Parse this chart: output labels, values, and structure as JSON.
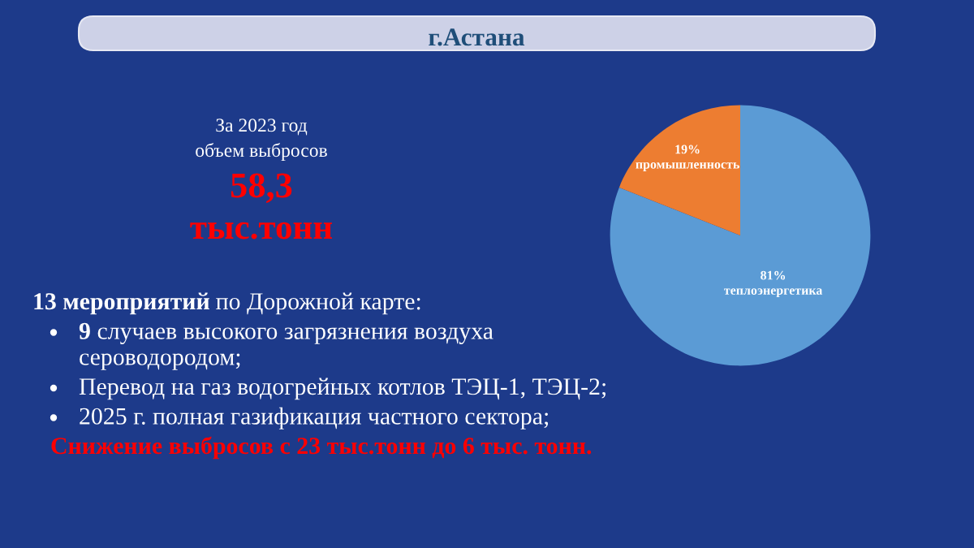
{
  "chart_data": {
    "type": "pie",
    "title": "г.Астана",
    "categories": [
      "теплоэнергетика",
      "промышленность"
    ],
    "values": [
      81,
      19
    ],
    "colors": [
      "#5b9bd5",
      "#ed7d31"
    ],
    "value_labels": [
      "81%",
      "19%"
    ],
    "annotations": [
      "За 2023 год",
      "объем выбросов",
      "58,3",
      "тыс.тонн",
      "13 мероприятий по Дорожной карте:",
      "9 случаев высокого загрязнения воздуха сероводородом;",
      "Перевод на газ водогрейных котлов ТЭЦ-1, ТЭЦ-2;",
      "2025 г. полная газификация частного сектора;",
      "Снижение выбросов с 23 тыс.тонн до 6 тыс. тонн."
    ]
  }
}
